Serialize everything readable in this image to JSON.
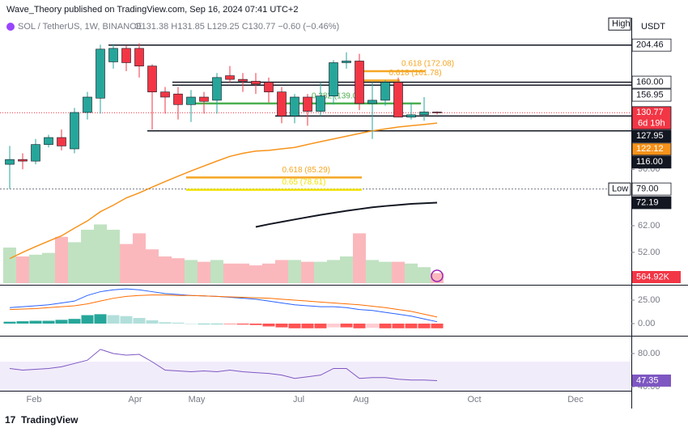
{
  "header": {
    "published": "Wave_Theory published on TradingView.com, Sep 16, 2024 07:41 UTC+2",
    "symbol": "SOL / TetherUS, 1W, BINANCE",
    "ohlc": "O131.38  H131.85  L129.25  C130.77  −0.60 (−0.46%)",
    "currency": "USDT"
  },
  "chart_data": {
    "type": "candlestick",
    "log_scale": true,
    "ylim": [
      40,
      220
    ],
    "candles": [
      {
        "o": 93,
        "h": 105,
        "l": 79,
        "c": 96
      },
      {
        "o": 96,
        "h": 100,
        "l": 90,
        "c": 95
      },
      {
        "o": 95,
        "h": 110,
        "l": 93,
        "c": 106
      },
      {
        "o": 106,
        "h": 113,
        "l": 104,
        "c": 111
      },
      {
        "o": 111,
        "h": 117,
        "l": 102,
        "c": 105
      },
      {
        "o": 103,
        "h": 135,
        "l": 100,
        "c": 131
      },
      {
        "o": 131,
        "h": 150,
        "l": 125,
        "c": 145
      },
      {
        "o": 144,
        "h": 205,
        "l": 130,
        "c": 199
      },
      {
        "o": 183,
        "h": 206,
        "l": 175,
        "c": 200
      },
      {
        "o": 200,
        "h": 204,
        "l": 172,
        "c": 182
      },
      {
        "o": 200,
        "h": 207,
        "l": 165,
        "c": 178
      },
      {
        "o": 178,
        "h": 180,
        "l": 117,
        "c": 150
      },
      {
        "o": 150,
        "h": 155,
        "l": 130,
        "c": 145
      },
      {
        "o": 148,
        "h": 155,
        "l": 125,
        "c": 138
      },
      {
        "o": 138,
        "h": 152,
        "l": 123,
        "c": 145
      },
      {
        "o": 145,
        "h": 150,
        "l": 130,
        "c": 141
      },
      {
        "o": 142,
        "h": 170,
        "l": 130,
        "c": 165
      },
      {
        "o": 167,
        "h": 178,
        "l": 160,
        "c": 163
      },
      {
        "o": 163,
        "h": 170,
        "l": 150,
        "c": 161
      },
      {
        "o": 161,
        "h": 170,
        "l": 148,
        "c": 158
      },
      {
        "o": 160,
        "h": 165,
        "l": 140,
        "c": 150
      },
      {
        "o": 150,
        "h": 155,
        "l": 122,
        "c": 128
      },
      {
        "o": 128,
        "h": 148,
        "l": 122,
        "c": 145
      },
      {
        "o": 145,
        "h": 148,
        "l": 120,
        "c": 132
      },
      {
        "o": 132,
        "h": 160,
        "l": 128,
        "c": 146
      },
      {
        "o": 146,
        "h": 185,
        "l": 138,
        "c": 182
      },
      {
        "o": 182,
        "h": 195,
        "l": 175,
        "c": 184
      },
      {
        "o": 184,
        "h": 193,
        "l": 133,
        "c": 139
      },
      {
        "o": 139,
        "h": 160,
        "l": 110,
        "c": 142
      },
      {
        "o": 142,
        "h": 162,
        "l": 137,
        "c": 160
      },
      {
        "o": 160,
        "h": 165,
        "l": 127,
        "c": 127
      },
      {
        "o": 127,
        "h": 140,
        "l": 125,
        "c": 129
      },
      {
        "o": 129,
        "h": 145,
        "l": 124,
        "c": 131.38
      },
      {
        "o": 131.38,
        "h": 131.85,
        "l": 129.25,
        "c": 130.77
      }
    ],
    "up_color": "#26a69a",
    "down_color": "#f23645",
    "ema": {
      "color": "#f7931a",
      "values": [
        49.9,
        52,
        54,
        56,
        58,
        61,
        64,
        68,
        71,
        74.5,
        77,
        80,
        83,
        86,
        89,
        92,
        95,
        98,
        100,
        101.5,
        102,
        103,
        104,
        106,
        108,
        110,
        112,
        114,
        116,
        117.5,
        119,
        120,
        121,
        122.12
      ]
    },
    "ma": {
      "color": "#131722",
      "values": [
        null,
        null,
        null,
        null,
        null,
        null,
        null,
        null,
        null,
        null,
        null,
        null,
        null,
        null,
        null,
        null,
        null,
        null,
        null,
        61.5,
        62.6,
        63.6,
        64.6,
        65.6,
        66.6,
        67.5,
        68.4,
        69.2,
        70,
        70.6,
        71.1,
        71.6,
        71.9,
        72.19
      ]
    },
    "levels": [
      204.46,
      160,
      156.95,
      127.95,
      116
    ],
    "low_line": 79,
    "fib": [
      {
        "label": "0.618 (172.08)",
        "value": 172.08,
        "color": "#f5a623"
      },
      {
        "label": "0.618 (161.78)",
        "value": 161.78,
        "color": "#f5a623"
      },
      {
        "label": "0.382 (139.04)",
        "value": 139.04,
        "color": "#4caf50"
      },
      {
        "label": "0.618 (85.29)",
        "value": 85.29,
        "color": "#f5a623"
      },
      {
        "label": "0.65 (78.61)",
        "value": 78.61,
        "color": "#f2e205"
      }
    ],
    "yticks": [
      {
        "value": 90,
        "label": "90.00"
      },
      {
        "value": 62,
        "label": "62.00"
      },
      {
        "value": 52,
        "label": "52.00"
      }
    ],
    "price_labels": [
      {
        "value": 204.46,
        "label": "204.46",
        "bg": "#ffffff",
        "fg": "#131722",
        "tag": "High"
      },
      {
        "value": 160,
        "label": "160.00",
        "bg": "#ffffff",
        "fg": "#131722"
      },
      {
        "value": 156.95,
        "label": "156.95",
        "bg": "#ffffff",
        "fg": "#131722"
      },
      {
        "value": 130.77,
        "label": "130.77",
        "bg": "#f23645",
        "fg": "#ffffff",
        "note": "6d 19h"
      },
      {
        "value": 127.95,
        "label": "127.95",
        "bg": "#131722",
        "fg": "#ffffff"
      },
      {
        "value": 122.12,
        "label": "122.12",
        "bg": "#f7931a",
        "fg": "#ffffff"
      },
      {
        "value": 116,
        "label": "116.00",
        "bg": "#131722",
        "fg": "#ffffff"
      },
      {
        "value": 79,
        "label": "79.00",
        "bg": "#ffffff",
        "fg": "#131722",
        "tag": "Low"
      },
      {
        "value": 72.19,
        "label": "72.19",
        "bg": "#131722",
        "fg": "#ffffff"
      }
    ],
    "volume": {
      "values": [
        2000,
        1500,
        1600,
        1700,
        2600,
        2300,
        3000,
        3300,
        3000,
        2200,
        2800,
        1900,
        1500,
        1400,
        1300,
        1200,
        1300,
        1100,
        1100,
        1000,
        1100,
        1300,
        1300,
        1200,
        1200,
        1300,
        1500,
        2800,
        1300,
        1200,
        1200,
        1100,
        900,
        564.92
      ],
      "value_label": "564.92K"
    },
    "macd": {
      "ylim": [
        -10,
        35
      ],
      "yticks": [
        {
          "value": 25,
          "label": "25.00"
        },
        {
          "value": 0,
          "label": "0.00"
        }
      ],
      "macd": [
        17,
        18,
        19,
        20,
        22,
        24,
        30,
        34,
        36,
        37,
        36,
        34,
        32,
        31,
        30,
        29.5,
        29,
        28,
        27,
        26,
        24,
        22,
        20,
        19,
        18,
        18,
        17,
        15,
        14,
        12,
        10,
        8,
        5,
        2
      ],
      "signal": [
        15,
        15.5,
        16,
        17,
        18,
        19,
        21,
        24,
        27,
        29,
        30,
        30.5,
        30.5,
        30,
        30,
        29.5,
        29,
        28.5,
        28,
        27.5,
        27,
        26,
        25,
        24,
        23,
        22,
        21,
        20,
        18.5,
        17,
        15,
        13,
        10,
        7
      ],
      "hist": [
        2,
        2.5,
        3,
        3,
        4,
        5,
        9,
        10,
        9,
        8,
        6,
        3.5,
        1.5,
        1,
        0,
        0,
        0,
        -0.5,
        -1,
        -1.5,
        -3,
        -4,
        -5,
        -5,
        -5,
        -4,
        -4,
        -5,
        -4.5,
        -5,
        -5,
        -5,
        -5,
        -5
      ]
    },
    "rsi": {
      "color": "#7e57c2",
      "yticks": [
        {
          "value": 80,
          "label": "80.00"
        },
        {
          "value": 40,
          "label": "40.00"
        }
      ],
      "values": [
        62,
        60,
        61,
        62,
        64,
        68,
        72,
        85,
        80,
        78,
        79,
        70,
        60,
        59,
        58,
        59,
        58,
        60,
        58,
        57,
        56,
        54,
        50,
        52,
        54,
        62,
        62,
        50,
        51,
        51,
        49,
        48,
        48,
        47.35
      ],
      "value_label": "47.35"
    },
    "months": [
      "Feb",
      "Apr",
      "May",
      "Jul",
      "Aug",
      "Oct",
      "Dec"
    ]
  },
  "footer": "TradingView"
}
